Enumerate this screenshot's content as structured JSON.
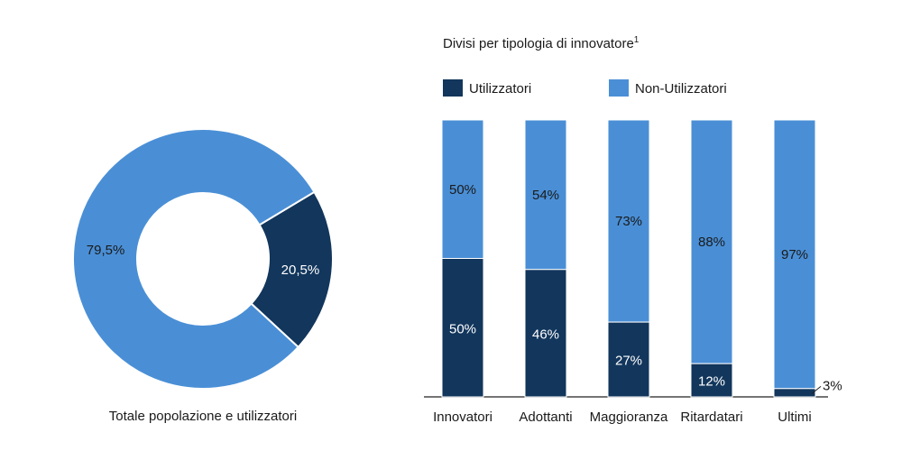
{
  "colors": {
    "users": "#12365c",
    "non_users": "#4a8fd6",
    "text_dark": "#1a1a1a",
    "text_light": "#ffffff",
    "axis": "#222222"
  },
  "chart_data": [
    {
      "type": "pie",
      "variant": "donut",
      "caption": "Totale popolazione e utilizzatori",
      "slices": [
        {
          "key": "users",
          "value": 20.5,
          "label": "20,5%"
        },
        {
          "key": "non_users",
          "value": 79.5,
          "label": "79,5%"
        }
      ]
    },
    {
      "type": "bar",
      "stacked": true,
      "title": "Divisi per tipologia di innovatore",
      "title_superscript": "1",
      "legend_position": "top-left",
      "categories": [
        "Innovatori",
        "Adottanti",
        "Maggioranza",
        "Ritardatari",
        "Ultimi"
      ],
      "ylim": [
        0,
        100
      ],
      "series": [
        {
          "key": "users",
          "name": "Utilizzatori",
          "values": [
            50,
            46,
            27,
            12,
            3
          ],
          "labels": [
            "50%",
            "46%",
            "27%",
            "12%",
            "3%"
          ]
        },
        {
          "key": "non_users",
          "name": "Non-Utilizzatori",
          "values": [
            50,
            54,
            73,
            88,
            97
          ],
          "labels": [
            "50%",
            "54%",
            "73%",
            "88%",
            "97%"
          ]
        }
      ]
    }
  ]
}
